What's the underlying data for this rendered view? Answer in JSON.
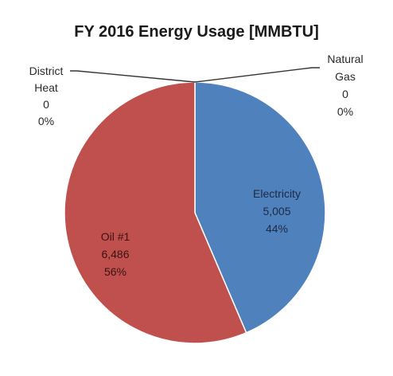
{
  "chart_data": {
    "type": "pie",
    "title": "FY 2016 Energy Usage [MMBTU]",
    "slices": [
      {
        "name": "Electricity",
        "value": "5,005",
        "numeric": 5005,
        "percent": "44%",
        "color": "#4f81bd"
      },
      {
        "name": "Oil #1",
        "value": "6,486",
        "numeric": 6486,
        "percent": "56%",
        "color": "#c0504d"
      },
      {
        "name": "District Heat",
        "value": "0",
        "numeric": 0,
        "percent": "0%",
        "color": "#9bbb59"
      },
      {
        "name": "Natural Gas",
        "value": "0",
        "numeric": 0,
        "percent": "0%",
        "color": "#8064a2"
      }
    ],
    "legend": "none",
    "label_lines": {
      "district_heat": [
        "District",
        "Heat",
        "0",
        "0%"
      ],
      "natural_gas": [
        "Natural",
        "Gas",
        "0",
        "0%"
      ],
      "electricity": [
        "Electricity",
        "5,005",
        "44%"
      ],
      "oil": [
        "Oil #1",
        "6,486",
        "56%"
      ]
    }
  }
}
